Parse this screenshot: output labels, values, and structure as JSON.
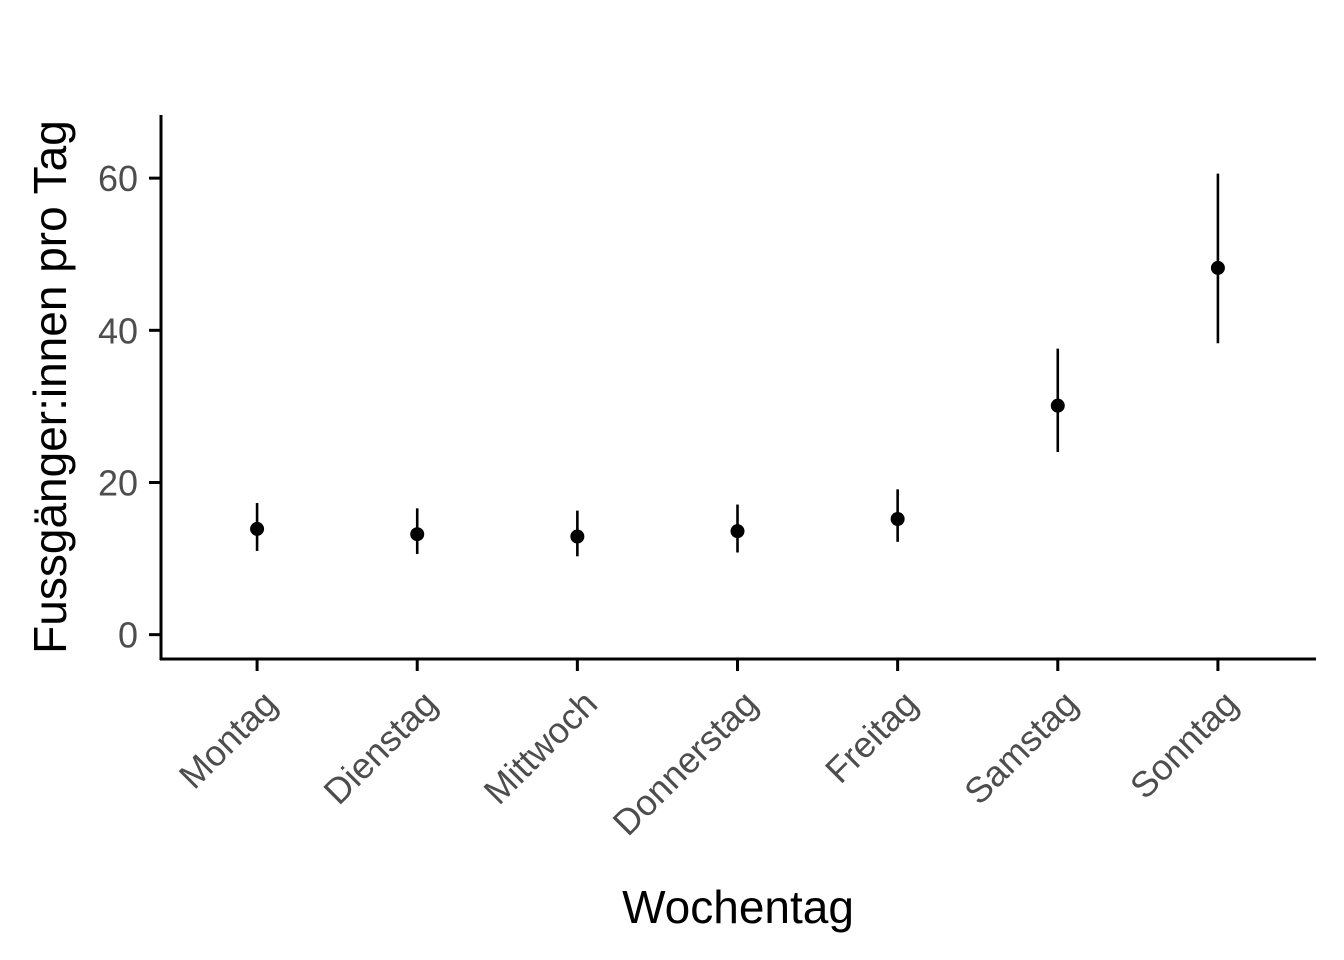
{
  "chart_data": {
    "type": "scatter",
    "title": "",
    "xlabel": "Wochentag",
    "ylabel": "Fussgänger:innen pro Tag",
    "categories": [
      "Montag",
      "Dienstag",
      "Mittwoch",
      "Donnerstag",
      "Freitag",
      "Samstag",
      "Sonntag"
    ],
    "series": [
      {
        "values": [
          13.9,
          13.2,
          12.9,
          13.6,
          15.2,
          30.1,
          48.2
        ],
        "lower": [
          11.0,
          10.6,
          10.3,
          10.8,
          12.2,
          24.0,
          38.3
        ],
        "upper": [
          17.3,
          16.6,
          16.3,
          17.1,
          19.1,
          37.6,
          60.6
        ]
      }
    ],
    "ylim": [
      -3.2,
      68.3
    ],
    "yticks": [
      0,
      20,
      40,
      60
    ],
    "grid": false,
    "legend": "none",
    "colors": {
      "points": "#000000",
      "axis": "#000000",
      "tick_text": "#4d4d4d"
    }
  }
}
